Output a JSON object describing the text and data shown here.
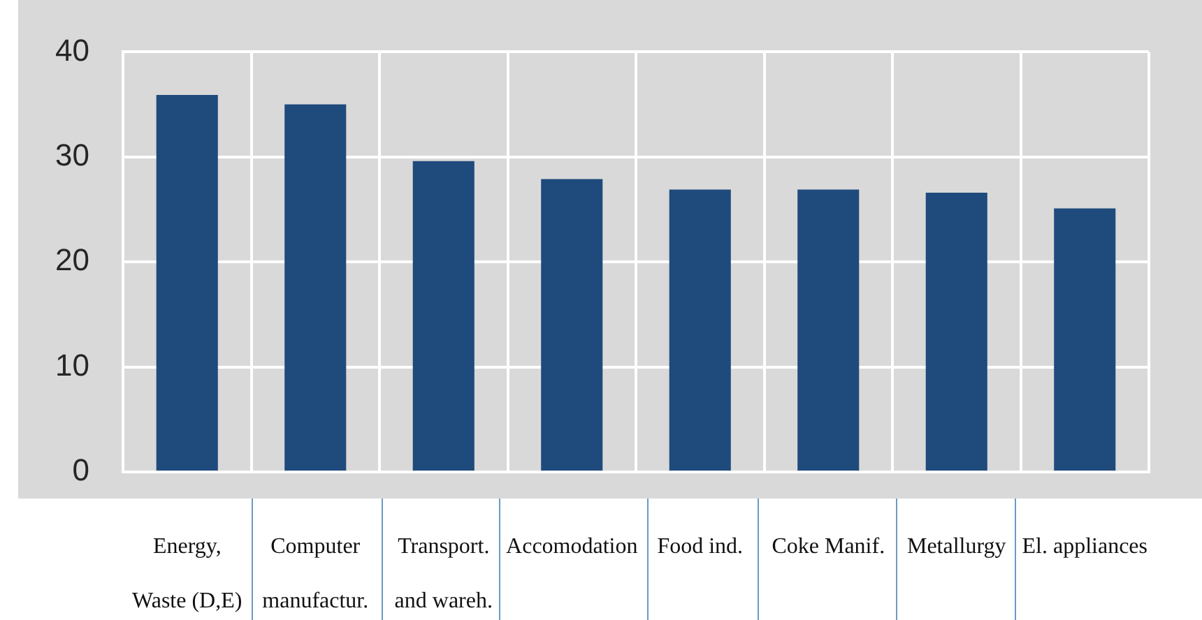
{
  "chart_data": {
    "type": "bar",
    "categories": [
      "Energy,\nWaste (D,E)",
      "Computer\nmanufactur.",
      "Transport.\nand wareh.",
      "Accomodation",
      "Food ind.",
      "Coke Manif.",
      "Metallurgy",
      "El. appliances"
    ],
    "values": [
      35.9,
      35,
      29.6,
      27.9,
      26.9,
      26.9,
      26.6,
      25.1
    ],
    "color": "#1f4a7c",
    "ylim": [
      0,
      40
    ],
    "yticks": [
      0,
      10,
      20,
      30,
      40
    ],
    "grid": true
  }
}
